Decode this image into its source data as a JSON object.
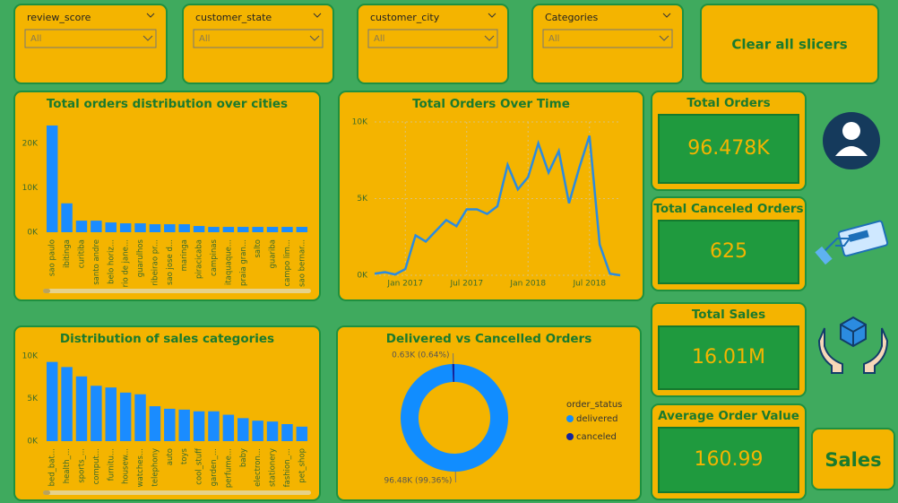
{
  "slicers": [
    {
      "label": "review_score",
      "value": "All"
    },
    {
      "label": "customer_state",
      "value": "All"
    },
    {
      "label": "customer_city",
      "value": "All"
    },
    {
      "label": "Categories",
      "value": "All"
    }
  ],
  "buttons": {
    "clear": "Clear all slicers",
    "sales": "Sales"
  },
  "cards": [
    {
      "title": "Total Orders",
      "value": "96.478K"
    },
    {
      "title": "Total Canceled Orders",
      "value": "625"
    },
    {
      "title": "Total Sales",
      "value": "16.01M"
    },
    {
      "title": "Average Order Value",
      "value": "160.99"
    }
  ],
  "chart_data": [
    {
      "type": "bar",
      "title": "Total orders distribution over cities",
      "categories": [
        "sao paulo",
        "ibitinga",
        "curitiba",
        "santo andre",
        "belo horiz...",
        "rio de jane...",
        "guarulhos",
        "ribeirao pr...",
        "sao jose d...",
        "maringa",
        "piracicaba",
        "campinas",
        "itaquaque...",
        "praia gran...",
        "salto",
        "guariba",
        "campo lim...",
        "sao bernar..."
      ],
      "values": [
        24000,
        6500,
        2600,
        2600,
        2200,
        2000,
        2000,
        1800,
        1800,
        1800,
        1400,
        1200,
        1200,
        1200,
        1200,
        1200,
        1200,
        1200
      ],
      "color": "#1a8cff",
      "ylim": [
        0,
        25000
      ],
      "yticks": [
        {
          "value": 0,
          "label": "0K"
        },
        {
          "value": 10000,
          "label": "10K"
        },
        {
          "value": 20000,
          "label": "20K"
        }
      ],
      "grid": false
    },
    {
      "type": "line",
      "title": "Total Orders Over Time",
      "x": [
        "2016-10",
        "2016-11",
        "2016-12",
        "2017-01",
        "2017-02",
        "2017-03",
        "2017-04",
        "2017-05",
        "2017-06",
        "2017-07",
        "2017-08",
        "2017-09",
        "2017-10",
        "2017-11",
        "2017-12",
        "2018-01",
        "2018-02",
        "2018-03",
        "2018-04",
        "2018-05",
        "2018-06",
        "2018-07",
        "2018-08",
        "2018-09",
        "2018-10"
      ],
      "values": [
        100,
        200,
        50,
        400,
        2600,
        2200,
        2900,
        3600,
        3200,
        4300,
        4300,
        4000,
        4500,
        7200,
        5600,
        6400,
        8600,
        6700,
        8100,
        4700,
        7000,
        9100,
        2000,
        100,
        0
      ],
      "color": "#2b8be0",
      "xlim": [
        "2016-10",
        "2018-10"
      ],
      "xticks": [
        {
          "value": "2017-01",
          "label": "Jan 2017"
        },
        {
          "value": "2017-07",
          "label": "Jul 2017"
        },
        {
          "value": "2018-01",
          "label": "Jan 2018"
        },
        {
          "value": "2018-07",
          "label": "Jul 2018"
        }
      ],
      "ylim": [
        0,
        10000
      ],
      "yticks": [
        {
          "value": 0,
          "label": "0K"
        },
        {
          "value": 5000,
          "label": "5K"
        },
        {
          "value": 10000,
          "label": "10K"
        }
      ],
      "grid": true
    },
    {
      "type": "bar",
      "title": "Distribution of sales categories",
      "categories": [
        "bed_bat...",
        "health_...",
        "sports_...",
        "comput...",
        "furnitu...",
        "housew...",
        "watches...",
        "telephony",
        "auto",
        "toys",
        "cool_stuff",
        "garden_...",
        "perfume...",
        "baby",
        "electron...",
        "stationery",
        "fashion_...",
        "pet_shop"
      ],
      "values": [
        9300,
        8700,
        7600,
        6500,
        6300,
        5700,
        5500,
        4100,
        3800,
        3700,
        3500,
        3500,
        3100,
        2700,
        2400,
        2300,
        2000,
        1700
      ],
      "color": "#1a8cff",
      "ylim": [
        0,
        10000
      ],
      "yticks": [
        {
          "value": 0,
          "label": "0K"
        },
        {
          "value": 5000,
          "label": "5K"
        },
        {
          "value": 10000,
          "label": "10K"
        }
      ],
      "grid": false
    },
    {
      "type": "donut",
      "title": "Delivered vs Cancelled Orders",
      "legend_title": "order_status",
      "categories": [
        "delivered",
        "canceled"
      ],
      "values": [
        96478,
        625
      ],
      "value_labels": [
        "96.48K (99.36%)",
        "0.63K (0.64%)"
      ],
      "colors": [
        "#118dff",
        "#12239e"
      ]
    }
  ]
}
